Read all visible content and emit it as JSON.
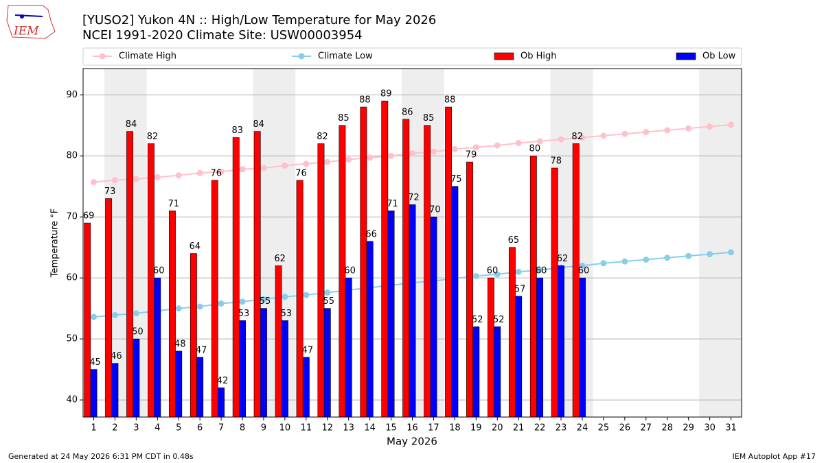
{
  "logo_text": "IEM",
  "footer_left": "Generated at 24 May 2026 6:31 PM CDT in 0.48s",
  "footer_right": "IEM Autoplot App #17",
  "chart_data": {
    "type": "bar",
    "title": "[YUSO2] Yukon 4N :: High/Low Temperature for May 2026",
    "subtitle": "NCEI 1991-2020 Climate Site: USW00003954",
    "x_label": "May 2026",
    "y_label": "Temperature °F",
    "categories": [
      "1",
      "2",
      "3",
      "4",
      "5",
      "6",
      "7",
      "8",
      "9",
      "10",
      "11",
      "12",
      "13",
      "14",
      "15",
      "16",
      "17",
      "18",
      "19",
      "20",
      "21",
      "22",
      "23",
      "24",
      "25",
      "26",
      "27",
      "28",
      "29",
      "30",
      "31"
    ],
    "shaded_categories": [
      "2",
      "3",
      "9",
      "10",
      "16",
      "17",
      "23",
      "24",
      "30",
      "31"
    ],
    "shade_color": "#eeeeee",
    "ylim": [
      37.2,
      94.3
    ],
    "yticks": [
      40,
      50,
      60,
      70,
      80,
      90
    ],
    "grid": true,
    "series": [
      {
        "name": "Climate High",
        "type": "line",
        "color": "#ffc0cb",
        "values": [
          75.7,
          76.0,
          76.2,
          76.5,
          76.8,
          77.2,
          77.4,
          77.8,
          78.0,
          78.4,
          78.7,
          79.0,
          79.4,
          79.7,
          80.0,
          80.4,
          80.7,
          81.1,
          81.4,
          81.7,
          82.1,
          82.4,
          82.7,
          83.0,
          83.3,
          83.6,
          83.9,
          84.2,
          84.5,
          84.8,
          85.1
        ]
      },
      {
        "name": "Climate Low",
        "type": "line",
        "color": "#87ceeb",
        "values": [
          53.6,
          53.9,
          54.2,
          54.6,
          55.0,
          55.3,
          55.8,
          56.1,
          56.5,
          56.9,
          57.2,
          57.6,
          58.0,
          58.4,
          58.8,
          59.2,
          59.5,
          59.9,
          60.3,
          60.6,
          61.0,
          61.3,
          61.7,
          62.0,
          62.4,
          62.7,
          63.0,
          63.3,
          63.6,
          63.9,
          64.2
        ]
      },
      {
        "name": "Ob High",
        "type": "bar",
        "color": "#ff0000",
        "values": [
          69,
          73,
          84,
          82,
          71,
          64,
          76,
          83,
          84,
          62,
          76,
          82,
          85,
          88,
          89,
          86,
          85,
          88,
          79,
          60,
          65,
          80,
          78,
          82,
          null,
          null,
          null,
          null,
          null,
          null,
          null
        ]
      },
      {
        "name": "Ob Low",
        "type": "bar",
        "color": "#0000ff",
        "values": [
          45,
          46,
          50,
          60,
          48,
          47,
          42,
          53,
          55,
          53,
          47,
          55,
          60,
          66,
          71,
          72,
          70,
          75,
          52,
          52,
          57,
          60,
          62,
          60,
          null,
          null,
          null,
          null,
          null,
          null,
          null
        ]
      }
    ]
  }
}
